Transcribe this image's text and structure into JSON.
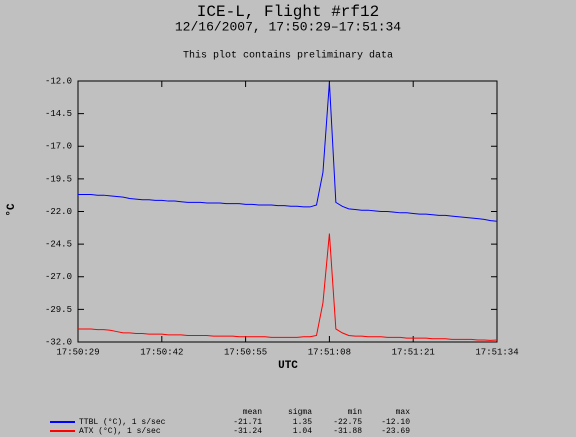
{
  "chart_data": {
    "type": "line",
    "title": "ICE-L, Flight #rf12",
    "subtitle": "12/16/2007, 17:50:29–17:51:34",
    "note": "This plot contains preliminary data",
    "y_label": "°C",
    "x_label": "UTC",
    "x": [
      "17:50:29",
      "17:50:30",
      "17:50:31",
      "17:50:32",
      "17:50:33",
      "17:50:34",
      "17:50:35",
      "17:50:36",
      "17:50:37",
      "17:50:38",
      "17:50:39",
      "17:50:40",
      "17:50:41",
      "17:50:42",
      "17:50:43",
      "17:50:44",
      "17:50:45",
      "17:50:46",
      "17:50:47",
      "17:50:48",
      "17:50:49",
      "17:50:50",
      "17:50:51",
      "17:50:52",
      "17:50:53",
      "17:50:54",
      "17:50:55",
      "17:50:56",
      "17:50:57",
      "17:50:58",
      "17:50:59",
      "17:51:00",
      "17:51:01",
      "17:51:02",
      "17:51:03",
      "17:51:04",
      "17:51:05",
      "17:51:06",
      "17:51:07",
      "17:51:08",
      "17:51:09",
      "17:51:10",
      "17:51:11",
      "17:51:12",
      "17:51:13",
      "17:51:14",
      "17:51:15",
      "17:51:16",
      "17:51:17",
      "17:51:18",
      "17:51:19",
      "17:51:20",
      "17:51:21",
      "17:51:22",
      "17:51:23",
      "17:51:24",
      "17:51:25",
      "17:51:26",
      "17:51:27",
      "17:51:28",
      "17:51:29",
      "17:51:30",
      "17:51:31",
      "17:51:32",
      "17:51:33",
      "17:51:34"
    ],
    "xticks": [
      "17:50:29",
      "17:50:42",
      "17:50:55",
      "17:51:08",
      "17:51:21",
      "17:51:34"
    ],
    "ylim": [
      -32,
      -12
    ],
    "yticks": [
      {
        "value": -12,
        "label": "-12.0"
      },
      {
        "value": -14.5,
        "label": "-14.5"
      },
      {
        "value": -17,
        "label": "-17.0"
      },
      {
        "value": -19.5,
        "label": "-19.5"
      },
      {
        "value": -22,
        "label": "-22.0"
      },
      {
        "value": -24.5,
        "label": "-24.5"
      },
      {
        "value": -27,
        "label": "-27.0"
      },
      {
        "value": -29.5,
        "label": "-29.5"
      },
      {
        "value": -32,
        "label": "-32.0"
      }
    ],
    "series": [
      {
        "name": "TTBL (°C), 1 s/sec",
        "color": "#0000ff",
        "values": [
          -20.7,
          -20.7,
          -20.7,
          -20.75,
          -20.75,
          -20.8,
          -20.85,
          -20.9,
          -21.0,
          -21.05,
          -21.1,
          -21.1,
          -21.15,
          -21.15,
          -21.2,
          -21.2,
          -21.25,
          -21.3,
          -21.3,
          -21.3,
          -21.35,
          -21.35,
          -21.35,
          -21.4,
          -21.4,
          -21.4,
          -21.45,
          -21.45,
          -21.5,
          -21.5,
          -21.5,
          -21.55,
          -21.55,
          -21.6,
          -21.6,
          -21.65,
          -21.65,
          -21.5,
          -19.0,
          -12.1,
          -21.3,
          -21.6,
          -21.8,
          -21.85,
          -21.9,
          -21.9,
          -21.95,
          -22.0,
          -22.0,
          -22.05,
          -22.1,
          -22.1,
          -22.15,
          -22.2,
          -22.2,
          -22.25,
          -22.3,
          -22.3,
          -22.35,
          -22.4,
          -22.45,
          -22.5,
          -22.55,
          -22.6,
          -22.7,
          -22.75
        ]
      },
      {
        "name": "ATX (°C), 1 s/sec",
        "color": "#ff0000",
        "values": [
          -31.0,
          -31.0,
          -31.0,
          -31.05,
          -31.05,
          -31.1,
          -31.2,
          -31.3,
          -31.3,
          -31.35,
          -31.35,
          -31.4,
          -31.4,
          -31.4,
          -31.45,
          -31.45,
          -31.45,
          -31.5,
          -31.5,
          -31.5,
          -31.5,
          -31.55,
          -31.55,
          -31.55,
          -31.55,
          -31.6,
          -31.6,
          -31.6,
          -31.6,
          -31.6,
          -31.65,
          -31.65,
          -31.65,
          -31.65,
          -31.65,
          -31.6,
          -31.6,
          -31.5,
          -29.0,
          -23.69,
          -31.0,
          -31.3,
          -31.5,
          -31.55,
          -31.55,
          -31.6,
          -31.6,
          -31.6,
          -31.65,
          -31.65,
          -31.65,
          -31.7,
          -31.7,
          -31.7,
          -31.7,
          -31.75,
          -31.75,
          -31.75,
          -31.8,
          -31.8,
          -31.8,
          -31.8,
          -31.85,
          -31.85,
          -31.88,
          -31.85
        ]
      }
    ],
    "summary": {
      "columns": [
        "mean",
        "sigma",
        "min",
        "max"
      ],
      "rows": [
        [
          "-21.71",
          "1.35",
          "-22.75",
          "-12.10"
        ],
        [
          "-31.24",
          "1.04",
          "-31.88",
          "-23.69"
        ]
      ]
    }
  }
}
